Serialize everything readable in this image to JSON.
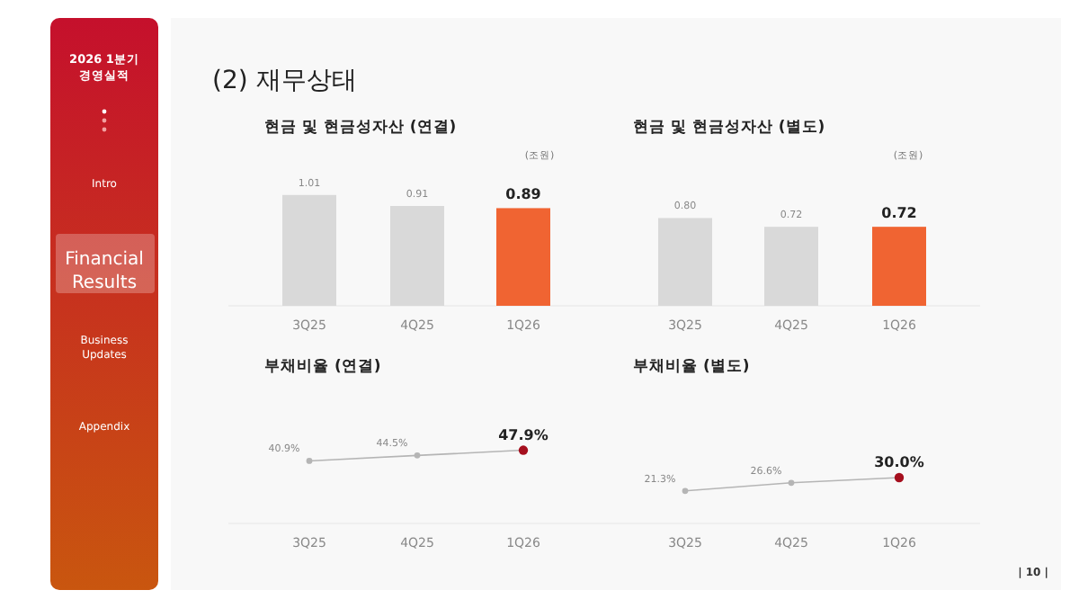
{
  "chart_data": [
    {
      "type": "other",
      "title": "2026 1분기 경영실적",
      "annotations": [
        "Intro",
        "Financial Results",
        "Business Updates",
        "Appendix"
      ]
    },
    {
      "type": "other",
      "title": "(2) 재무상태",
      "annotations": [
        "| 10 |"
      ]
    },
    {
      "type": "bar",
      "title": "현금 및 현금성자산 (연결)",
      "ylabel": "(조원)",
      "categories": [
        "3Q25",
        "4Q25",
        "1Q26"
      ],
      "values": [
        1.01,
        0.91,
        0.89
      ],
      "colors": [
        "#d9d9d9",
        "#d9d9d9",
        "#f06432"
      ],
      "data_labels": true
    },
    {
      "type": "bar",
      "title": "현금 및 현금성자산 (별도)",
      "ylabel": "(조원)",
      "categories": [
        "3Q25",
        "4Q25",
        "1Q26"
      ],
      "values": [
        0.8,
        0.72,
        0.72
      ],
      "colors": [
        "#d9d9d9",
        "#d9d9d9",
        "#f06432"
      ],
      "value_labels": [
        "0.80",
        "0.72",
        "0.72"
      ]
    },
    {
      "type": "line",
      "title": "부채비율 (연결)",
      "categories": [
        "3Q25",
        "4Q25",
        "1Q26"
      ],
      "color": "#b5b5b5",
      "marker": "circle",
      "colors": [
        "#b5b5b5",
        "#b5b5b5",
        "#a50f1e"
      ],
      "value_labels": [
        "40.9%",
        "44.5%",
        "47.9%"
      ],
      "values": [
        40.9,
        44.5,
        47.9
      ]
    },
    {
      "type": "line",
      "title": "부채비율 (별도)",
      "categories": [
        "3Q25",
        "4Q25",
        "1Q26"
      ],
      "color": "#b5b5b5",
      "marker": "circle",
      "colors": [
        "#b5b5b5",
        "#b5b5b5",
        "#a50f1e"
      ],
      "value_labels": [
        "21.3%",
        "26.6%",
        "30.0%"
      ],
      "values": [
        21.3,
        26.6,
        30.0
      ]
    }
  ]
}
